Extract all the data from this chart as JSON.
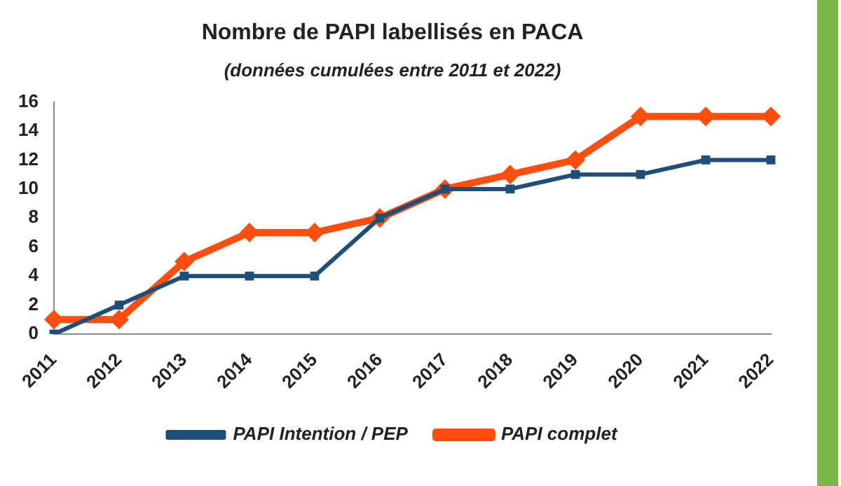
{
  "chart_data": {
    "type": "line",
    "title": "Nombre de PAPI labellisés en PACA",
    "subtitle": "(données cumulées entre 2011 et 2022)",
    "categories": [
      "2011",
      "2012",
      "2013",
      "2014",
      "2015",
      "2016",
      "2017",
      "2018",
      "2019",
      "2020",
      "2021",
      "2022"
    ],
    "series": [
      {
        "name": "PAPI Intention / PEP",
        "color": "#1f4e79",
        "marker": "square",
        "values": [
          0,
          2,
          4,
          4,
          4,
          8,
          10,
          10,
          11,
          11,
          12,
          12
        ]
      },
      {
        "name": "PAPI complet",
        "color": "#ff4e0f",
        "marker": "diamond",
        "values": [
          1,
          1,
          5,
          7,
          7,
          8,
          10,
          11,
          12,
          15,
          15,
          15
        ]
      }
    ],
    "ylim": [
      0,
      16
    ],
    "yticks": [
      0,
      2,
      4,
      6,
      8,
      10,
      12,
      14,
      16
    ],
    "grid": false,
    "legend": "bottom"
  }
}
